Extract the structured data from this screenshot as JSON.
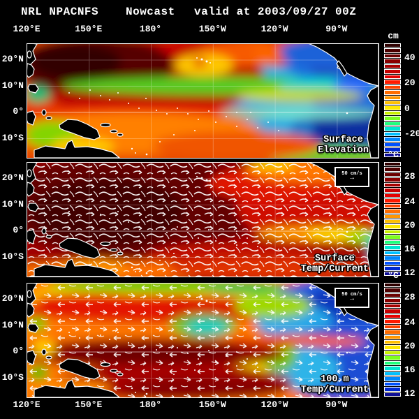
{
  "title": {
    "model": "NRL NPACNFS",
    "product": "Nowcast",
    "valid": "valid at 2003/09/27 00Z"
  },
  "axis": {
    "lon_ticks": [
      "120°E",
      "150°E",
      "180°",
      "150°W",
      "120°W",
      "90°W"
    ],
    "lat_ticks": [
      "20°N",
      "10°N",
      "0°",
      "10°S"
    ]
  },
  "panels": [
    {
      "name": "surface-elevation",
      "label_lines": [
        "Surface",
        "Elevation"
      ],
      "colorbar": {
        "unit": "cm",
        "ticks": [
          {
            "label": "40",
            "pos": 0.123
          },
          {
            "label": "20",
            "pos": 0.344
          },
          {
            "label": "0",
            "pos": 0.571
          },
          {
            "label": "-20",
            "pos": 0.791
          }
        ]
      }
    },
    {
      "name": "surface-temp-current",
      "label_lines": [
        "Surface",
        "Temp/Current"
      ],
      "vector_scale_label": "50 cm/s",
      "colorbar": {
        "unit": "°C",
        "ticks": [
          {
            "label": "28",
            "pos": 0.123
          },
          {
            "label": "24",
            "pos": 0.344
          },
          {
            "label": "20",
            "pos": 0.552
          },
          {
            "label": "16",
            "pos": 0.761
          },
          {
            "label": "12",
            "pos": 0.969
          }
        ]
      }
    },
    {
      "name": "100m-temp-current",
      "label_lines": [
        "100 m",
        "Temp/Current"
      ],
      "vector_scale_label": "50 cm/s",
      "colorbar": {
        "unit": "°C",
        "ticks": [
          {
            "label": "28",
            "pos": 0.123
          },
          {
            "label": "24",
            "pos": 0.344
          },
          {
            "label": "20",
            "pos": 0.552
          },
          {
            "label": "16",
            "pos": 0.761
          },
          {
            "label": "12",
            "pos": 0.969
          }
        ]
      }
    }
  ],
  "colorbar_colors": [
    "#2e0000",
    "#4c0000",
    "#6b0000",
    "#8a0000",
    "#a80000",
    "#c70000",
    "#e60000",
    "#ff1a00",
    "#ff4300",
    "#ff6d00",
    "#ff9600",
    "#ffc000",
    "#ffe900",
    "#c9f200",
    "#7dff1e",
    "#1eff7d",
    "#00e6d2",
    "#00bfff",
    "#0087ff",
    "#0050ff",
    "#0028d2",
    "#0f0f96"
  ],
  "icons": {
    "vector_arrow": "→"
  },
  "style_colors": {
    "background": "#000000",
    "text": "#ffffff",
    "coastline": "#ffffff"
  }
}
